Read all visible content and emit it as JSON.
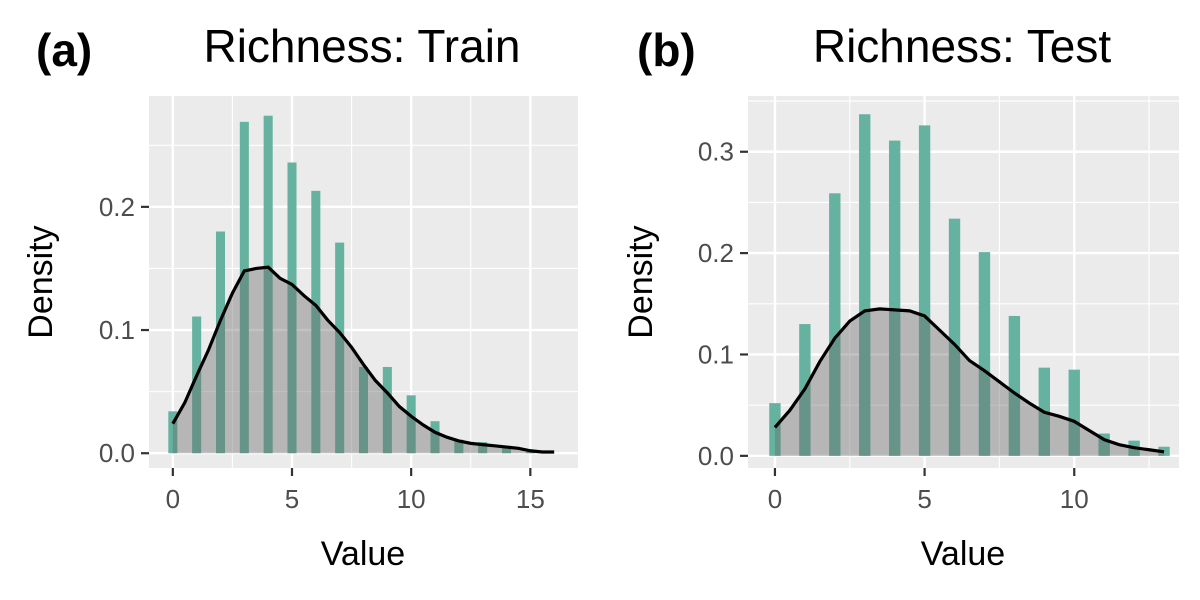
{
  "chart_data": [
    {
      "type": "bar",
      "tag": "(a)",
      "title": "Richness: Train",
      "xlabel": "Value",
      "ylabel": "Density",
      "xlim": [
        -1,
        17
      ],
      "ylim": [
        -0.012,
        0.29
      ],
      "xticks": [
        0,
        5,
        10,
        15
      ],
      "xtick_labels": [
        "0",
        "5",
        "10",
        "15"
      ],
      "yticks": [
        0.0,
        0.1,
        0.2
      ],
      "ytick_labels": [
        "0.0",
        "0.1",
        "0.2"
      ],
      "grid": true,
      "histogram": {
        "x": [
          0,
          1,
          2,
          3,
          4,
          5,
          6,
          7,
          8,
          9,
          10,
          11,
          12,
          13,
          14,
          15
        ],
        "values": [
          0.034,
          0.111,
          0.18,
          0.269,
          0.274,
          0.236,
          0.213,
          0.171,
          0.07,
          0.07,
          0.047,
          0.026,
          0.011,
          0.009,
          0.006,
          0.001
        ],
        "color": "#66b2a0"
      },
      "density": {
        "x": [
          0,
          0.5,
          1,
          1.5,
          2,
          2.5,
          3,
          3.5,
          4,
          4.5,
          5,
          5.5,
          6,
          6.5,
          7,
          7.5,
          8,
          8.5,
          9,
          9.5,
          10,
          10.5,
          11,
          11.5,
          12,
          12.5,
          13,
          13.5,
          14,
          14.5,
          15,
          15.5,
          16
        ],
        "y": [
          0.024,
          0.041,
          0.063,
          0.084,
          0.108,
          0.13,
          0.148,
          0.15,
          0.151,
          0.142,
          0.137,
          0.128,
          0.12,
          0.108,
          0.098,
          0.086,
          0.072,
          0.059,
          0.049,
          0.038,
          0.03,
          0.023,
          0.017,
          0.013,
          0.01,
          0.008,
          0.007,
          0.006,
          0.005,
          0.004,
          0.002,
          0.001,
          0.001
        ],
        "line_color": "#000000",
        "fill_color": "#666666"
      }
    },
    {
      "type": "bar",
      "tag": "(b)",
      "title": "Richness: Test",
      "xlabel": "Value",
      "ylabel": "Density",
      "xlim": [
        -0.9,
        13.5
      ],
      "ylim": [
        -0.012,
        0.355
      ],
      "xticks": [
        0,
        5,
        10
      ],
      "xtick_labels": [
        "0",
        "5",
        "10"
      ],
      "yticks": [
        0.0,
        0.1,
        0.2,
        0.3
      ],
      "ytick_labels": [
        "0.0",
        "0.1",
        "0.2",
        "0.3"
      ],
      "grid": true,
      "histogram": {
        "x": [
          0,
          1,
          2,
          3,
          4,
          5,
          6,
          7,
          8,
          9,
          10,
          11,
          12,
          13
        ],
        "values": [
          0.052,
          0.13,
          0.259,
          0.337,
          0.311,
          0.326,
          0.234,
          0.201,
          0.138,
          0.087,
          0.085,
          0.022,
          0.015,
          0.009
        ],
        "color": "#66b2a0"
      },
      "density": {
        "x": [
          0,
          0.5,
          1,
          1.5,
          2,
          2.5,
          3,
          3.5,
          4,
          4.5,
          5,
          5.5,
          6,
          6.5,
          7,
          7.5,
          8,
          8.5,
          9,
          9.5,
          10,
          10.5,
          11,
          11.5,
          12,
          12.5,
          13
        ],
        "y": [
          0.028,
          0.045,
          0.066,
          0.093,
          0.116,
          0.133,
          0.143,
          0.145,
          0.144,
          0.143,
          0.138,
          0.124,
          0.11,
          0.094,
          0.084,
          0.073,
          0.062,
          0.052,
          0.043,
          0.039,
          0.034,
          0.025,
          0.016,
          0.011,
          0.008,
          0.006,
          0.004
        ],
        "line_color": "#000000",
        "fill_color": "#666666"
      }
    }
  ]
}
